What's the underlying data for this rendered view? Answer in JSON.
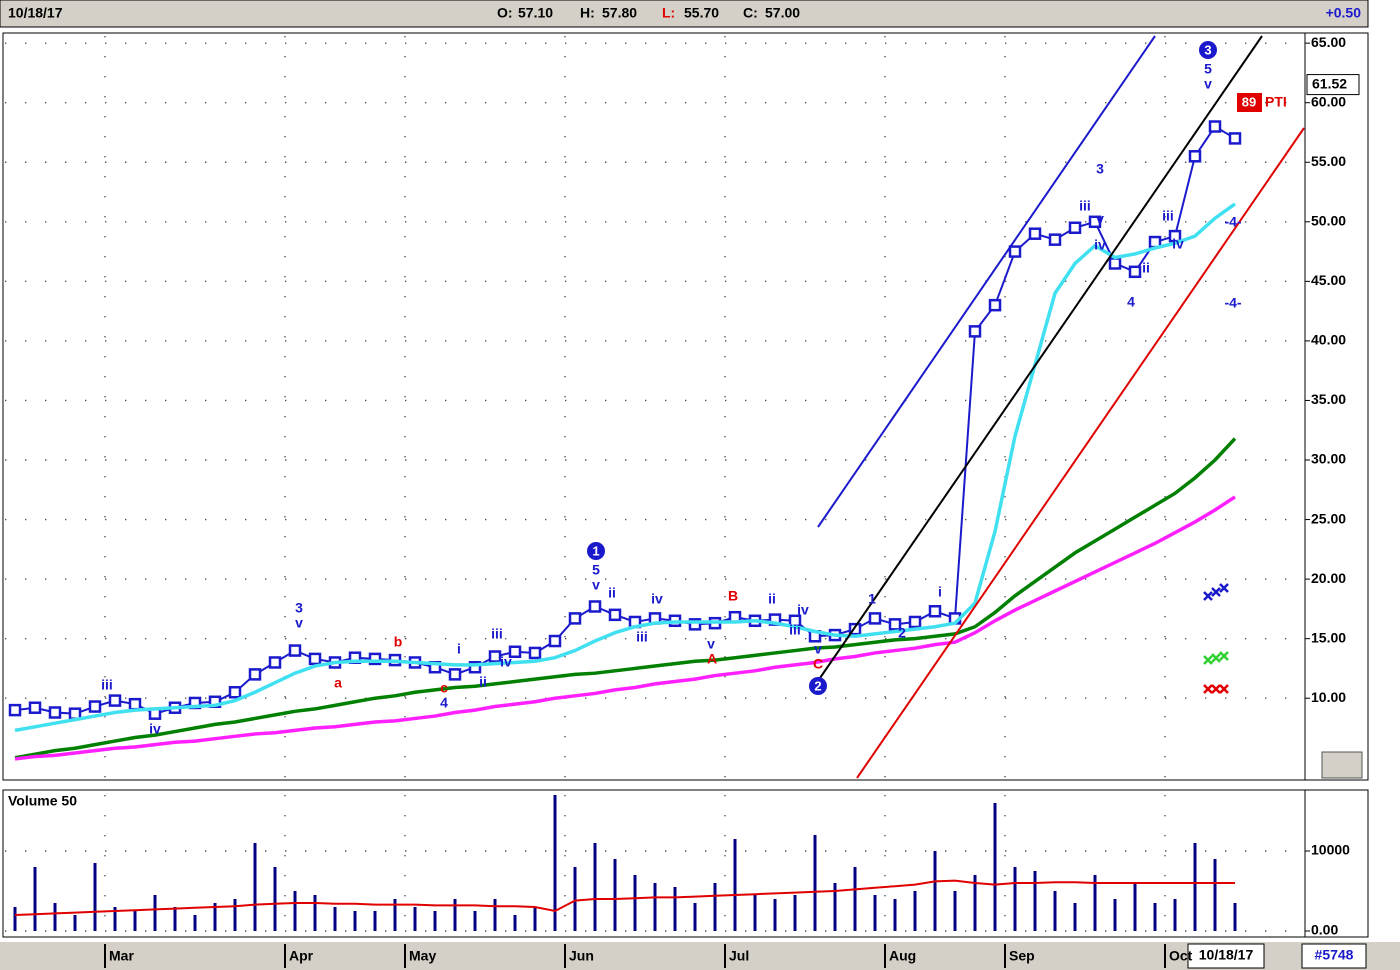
{
  "header": {
    "date": "10/18/17",
    "items": [
      {
        "label": "O:",
        "value": "57.10"
      },
      {
        "label": "H:",
        "value": "57.80"
      },
      {
        "label": "L:",
        "value": "55.70"
      },
      {
        "label": "C:",
        "value": "57.00"
      }
    ],
    "change": "+0.50"
  },
  "footer": {
    "date": "10/18/17",
    "id": "#5748"
  },
  "annotations": [
    "iii",
    "iv",
    "3",
    "v",
    "a",
    "b",
    "c",
    "4",
    "i",
    "ii",
    "iii",
    "iv",
    "1",
    "5",
    "v",
    "ii",
    "iv",
    "iii",
    "v",
    "A",
    "B",
    "ii",
    "iv",
    "iii",
    "v",
    "C",
    "2",
    "1",
    "2",
    "i",
    "3",
    "iii",
    "v",
    "iv",
    "ii",
    "4",
    "iii",
    "iv",
    "3",
    "5",
    "v",
    "-4-",
    "-4-"
  ],
  "indicator": {
    "value": 89,
    "label": "PTI"
  },
  "chart_data": [
    {
      "type": "line",
      "price_flag": 61.52,
      "grid": true,
      "ylim": [
        3.3,
        65.6
      ],
      "yticks": [
        {
          "value": 10,
          "label": "10.00"
        },
        {
          "value": 15,
          "label": "15.00"
        },
        {
          "value": 20,
          "label": "20.00"
        },
        {
          "value": 25,
          "label": "25.00"
        },
        {
          "value": 30,
          "label": "30.00"
        },
        {
          "value": 35,
          "label": "35.00"
        },
        {
          "value": 40,
          "label": "40.00"
        },
        {
          "value": 45,
          "label": "45.00"
        },
        {
          "value": 50,
          "label": "50.00"
        },
        {
          "value": 55,
          "label": "55.00"
        },
        {
          "value": 60,
          "label": "60.00"
        },
        {
          "value": 65,
          "label": "65.00"
        }
      ],
      "categories": [
        null,
        null,
        null,
        null,
        null,
        "Mar",
        null,
        null,
        null,
        null,
        null,
        null,
        null,
        null,
        "Apr",
        null,
        null,
        null,
        null,
        null,
        "May",
        null,
        null,
        null,
        null,
        null,
        null,
        null,
        "Jun",
        null,
        null,
        null,
        null,
        null,
        null,
        null,
        "Jul",
        null,
        null,
        null,
        null,
        null,
        null,
        null,
        "Aug",
        null,
        "",
        null,
        null,
        null,
        "Sep",
        null,
        null,
        null,
        null,
        null,
        null,
        null,
        "Oct",
        null,
        null,
        null,
        null,
        null,
        null
      ],
      "series": [
        {
          "color": "#1a1acc",
          "marker": "square",
          "values": [
            9,
            9.2,
            8.8,
            8.7,
            9.3,
            9.8,
            9.5,
            8.7,
            9.2,
            9.6,
            9.7,
            10.5,
            12,
            13,
            14,
            13.3,
            13,
            13.4,
            13.3,
            13.2,
            13,
            12.6,
            12,
            12.6,
            13.5,
            13.9,
            13.8,
            14.8,
            16.7,
            17.7,
            17,
            16.4,
            16.7,
            16.5,
            16.2,
            16.3,
            16.8,
            16.5,
            16.6,
            16.5,
            15.2,
            15.3,
            15.8,
            16.7,
            16.2,
            16.4,
            17.3,
            16.7,
            40.8,
            43,
            47.5,
            49,
            48.5,
            49.5,
            50,
            46.5,
            45.8,
            48.3,
            48.8,
            55.5,
            58,
            57,
            null,
            null,
            null
          ]
        },
        {
          "color": "#40e0f0",
          "values": [
            7.3,
            7.6,
            7.9,
            8.2,
            8.5,
            8.8,
            9,
            9.1,
            9.2,
            9.3,
            9.4,
            9.8,
            10.5,
            11.3,
            12.1,
            12.7,
            13,
            13.1,
            13.1,
            13.1,
            13,
            12.9,
            12.8,
            12.8,
            12.9,
            13,
            13.1,
            13.4,
            14,
            14.8,
            15.5,
            16,
            16.3,
            16.4,
            16.4,
            16.4,
            16.4,
            16.5,
            16.3,
            16,
            15.6,
            15.3,
            15.2,
            15.4,
            15.6,
            15.8,
            16,
            16.3,
            18,
            24,
            32,
            38,
            44,
            46.5,
            48,
            47,
            47.3,
            47.8,
            48.2,
            48.8,
            50.3,
            51.5,
            null,
            null,
            null
          ]
        },
        {
          "color": "#008000",
          "values": [
            5,
            5.3,
            5.6,
            5.8,
            6.1,
            6.4,
            6.7,
            6.9,
            7.2,
            7.5,
            7.8,
            8,
            8.3,
            8.6,
            8.9,
            9.1,
            9.4,
            9.7,
            10,
            10.2,
            10.5,
            10.7,
            10.9,
            11,
            11.2,
            11.4,
            11.6,
            11.8,
            12,
            12.1,
            12.3,
            12.5,
            12.7,
            12.9,
            13.1,
            13.2,
            13.4,
            13.6,
            13.8,
            14,
            14.2,
            14.3,
            14.5,
            14.7,
            14.9,
            15,
            15.2,
            15.4,
            16,
            17.2,
            18.6,
            19.8,
            21,
            22.2,
            23.2,
            24.2,
            25.2,
            26.2,
            27.2,
            28.5,
            30,
            31.8,
            null,
            null,
            null
          ]
        },
        {
          "color": "#ff20ff",
          "values": [
            4.9,
            5.1,
            5.2,
            5.4,
            5.6,
            5.8,
            5.9,
            6.1,
            6.3,
            6.4,
            6.6,
            6.8,
            7,
            7.1,
            7.3,
            7.5,
            7.6,
            7.8,
            8,
            8.1,
            8.3,
            8.5,
            8.8,
            9,
            9.3,
            9.5,
            9.7,
            10,
            10.2,
            10.4,
            10.7,
            10.9,
            11.2,
            11.4,
            11.6,
            11.9,
            12.1,
            12.3,
            12.6,
            12.8,
            13,
            13.3,
            13.5,
            13.8,
            14,
            14.2,
            14.5,
            14.7,
            15.5,
            16.5,
            17.4,
            18.2,
            19,
            19.8,
            20.6,
            21.4,
            22.2,
            23,
            23.9,
            24.8,
            25.8,
            26.9,
            null,
            null,
            null
          ]
        }
      ]
    },
    {
      "type": "bar",
      "title": "Volume 50",
      "grid": true,
      "ylim": [
        0,
        17000
      ],
      "yticks": [
        {
          "value": 0,
          "label": "0.00"
        },
        10000
      ],
      "series": [
        {
          "type": "bar",
          "color": "#000080",
          "values": [
            3000,
            8000,
            3500,
            2000,
            8500,
            3000,
            2500,
            4500,
            3000,
            2000,
            3500,
            4000,
            11000,
            8000,
            5000,
            4500,
            3000,
            2500,
            2500,
            4000,
            3000,
            2500,
            4000,
            2500,
            4000,
            2000,
            3000,
            17000,
            8000,
            11000,
            9000,
            7000,
            6000,
            5500,
            3500,
            6000,
            11500,
            4500,
            4000,
            4500,
            12000,
            6000,
            8000,
            4500,
            4000,
            5000,
            10000,
            5000,
            7000,
            16000,
            8000,
            7500,
            5000,
            3500,
            7000,
            4000,
            6000,
            3500,
            4000,
            11000,
            9000,
            3500,
            null,
            null,
            null
          ]
        },
        {
          "type": "line",
          "color": "#e00000",
          "values": [
            2000,
            2100,
            2200,
            2300,
            2400,
            2500,
            2600,
            2700,
            2800,
            2900,
            3000,
            3100,
            3300,
            3400,
            3500,
            3500,
            3400,
            3400,
            3300,
            3300,
            3300,
            3200,
            3200,
            3200,
            3100,
            3100,
            3000,
            2500,
            3800,
            4000,
            4000,
            4100,
            4200,
            4200,
            4300,
            4400,
            4500,
            4600,
            4700,
            4800,
            4900,
            5000,
            5200,
            5400,
            5600,
            5800,
            6200,
            6300,
            6000,
            5800,
            6000,
            6000,
            6100,
            6100,
            6000,
            6000,
            6000,
            6000,
            6000,
            6000,
            6000,
            6000,
            null,
            null,
            null
          ]
        }
      ]
    }
  ]
}
